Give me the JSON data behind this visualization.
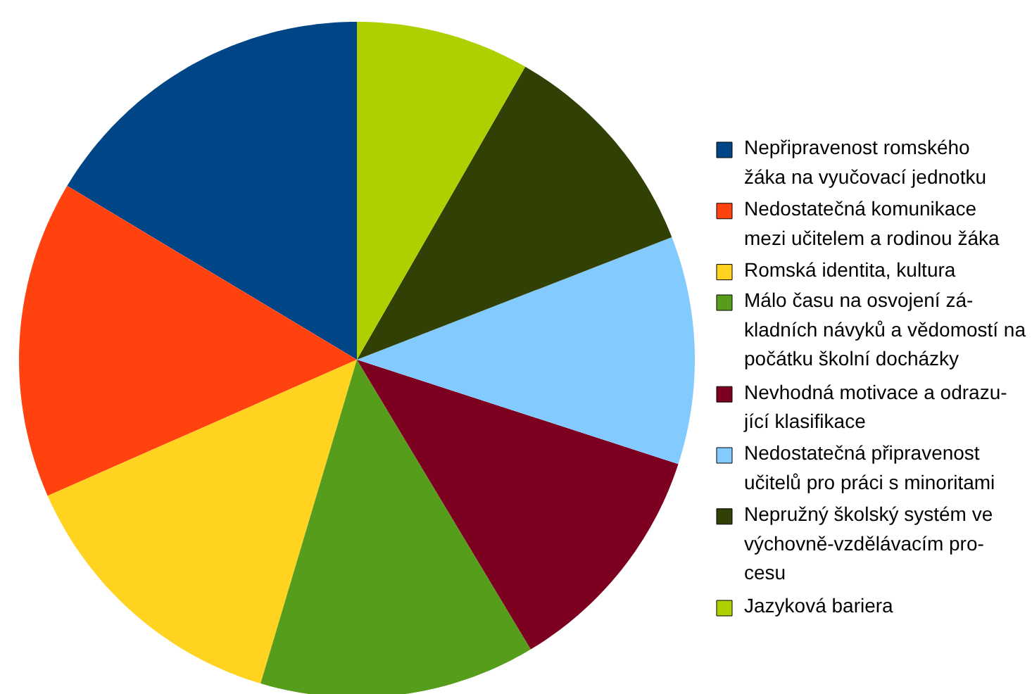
{
  "chart_data": {
    "type": "pie",
    "legend": "right",
    "categories": [
      "Nepřipravenost romského\nžáka na vyučovací jednotku",
      "Nedostatečná komunikace\nmezi učitelem a rodinou žáka",
      "Romská identita, kultura",
      "Málo času na osvojení zá-\nkladních návyků a vědomostí na\npočátku školní docházky",
      "Nevhodná motivace a odrazu-\njící klasifikace",
      "Nedostatečná připravenost\nučitelů pro práci s minoritami",
      "Nepružný školský systém ve\nvýchovně-vzdělávacím pro-\ncesu",
      "Jazyková bariera"
    ],
    "values": [
      16.4,
      15.2,
      13.8,
      13.2,
      11.4,
      10.9,
      10.8,
      8.3
    ],
    "colors": [
      "#004586",
      "#ff420e",
      "#ffd320",
      "#579d1c",
      "#7e0021",
      "#83caff",
      "#314004",
      "#aecf00"
    ]
  }
}
